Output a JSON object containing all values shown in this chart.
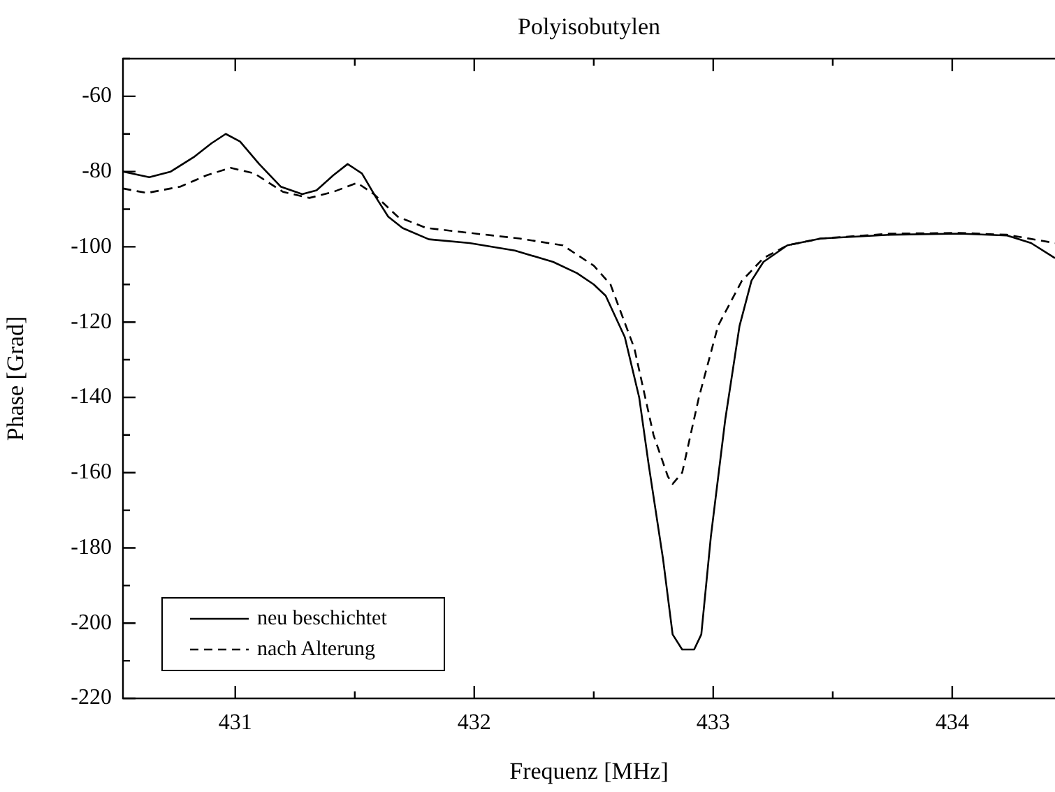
{
  "chart_data": {
    "type": "line",
    "title": "Polyisobutylen",
    "xlabel": "Frequenz [MHz]",
    "ylabel": "Phase [Grad]",
    "xlim": [
      430.53,
      434.43
    ],
    "ylim": [
      -220,
      -50
    ],
    "xticks": [
      431,
      {
        "value": 431.5,
        "label": null
      },
      432,
      {
        "value": 432.5,
        "label": null
      },
      433,
      {
        "value": 433.5,
        "label": null
      },
      434
    ],
    "yticks": [
      -220,
      {
        "value": -210,
        "label": null
      },
      -200,
      {
        "value": -190,
        "label": null
      },
      -180,
      {
        "value": -170,
        "label": null
      },
      -160,
      {
        "value": -150,
        "label": null
      },
      -140,
      {
        "value": -130,
        "label": null
      },
      -120,
      {
        "value": -110,
        "label": null
      },
      -100,
      {
        "value": -90,
        "label": null
      },
      -80,
      {
        "value": -70,
        "label": null
      },
      -60,
      {
        "value": -50,
        "label": null
      }
    ],
    "legend": "bottom left",
    "marker": "none",
    "series": [
      {
        "name": "neu beschichtet",
        "color": "#000000",
        "line_style": "solid",
        "x": [
          430.53,
          430.64,
          430.73,
          430.83,
          430.9,
          430.96,
          431.02,
          431.1,
          431.19,
          431.28,
          431.34,
          431.41,
          431.47,
          431.53,
          431.59,
          431.64,
          431.7,
          431.81,
          431.98,
          432.17,
          432.33,
          432.43,
          432.5,
          432.55,
          432.63,
          432.69,
          432.73,
          432.79,
          432.83,
          432.87,
          432.92,
          432.95,
          432.99,
          433.05,
          433.11,
          433.16,
          433.21,
          433.31,
          433.45,
          433.74,
          434.03,
          434.23,
          434.33,
          434.43
        ],
        "values": [
          -80,
          -81.5,
          -80,
          -76,
          -72.5,
          -70,
          -72,
          -78,
          -84,
          -86,
          -85,
          -81,
          -78,
          -80.5,
          -87,
          -92,
          -95,
          -98,
          -99,
          -101,
          -104,
          -107,
          -110,
          -113,
          -124,
          -140,
          -158,
          -183,
          -203,
          -207,
          -207,
          -203,
          -177,
          -146,
          -121,
          -109,
          -104,
          -99.6,
          -97.8,
          -96.8,
          -96.5,
          -97,
          -99,
          -103
        ]
      },
      {
        "name": "nach Alterung",
        "color": "#000000",
        "line_style": "dashed",
        "x": [
          430.53,
          430.63,
          430.77,
          430.88,
          430.98,
          431.08,
          431.2,
          431.31,
          431.41,
          431.51,
          431.58,
          431.68,
          431.8,
          431.98,
          432.19,
          432.37,
          432.5,
          432.57,
          432.67,
          432.75,
          432.81,
          432.83,
          432.87,
          432.94,
          433.02,
          433.12,
          433.21,
          433.31,
          433.45,
          433.74,
          434.03,
          434.23,
          434.43
        ],
        "values": [
          -84.5,
          -85.7,
          -84,
          -81,
          -79,
          -80.5,
          -85.4,
          -87,
          -85.4,
          -83,
          -86,
          -92,
          -95,
          -96.3,
          -97.8,
          -99.6,
          -105,
          -110,
          -127,
          -150,
          -161,
          -163,
          -160,
          -140,
          -121,
          -109,
          -103,
          -99.6,
          -97.8,
          -96.5,
          -96.3,
          -96.8,
          -99
        ]
      }
    ]
  }
}
